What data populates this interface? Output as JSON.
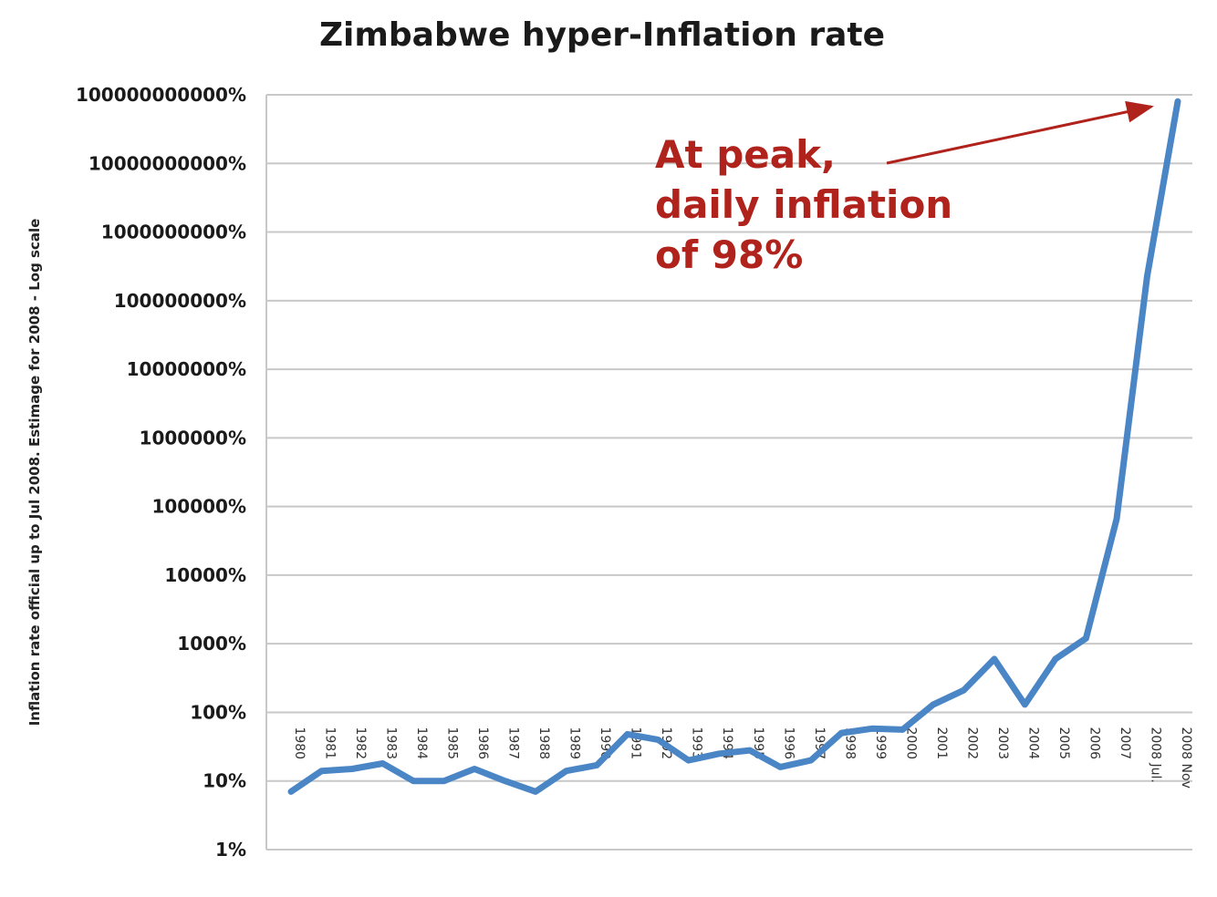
{
  "chart_data": {
    "type": "line",
    "title": "Zimbabwe hyper-Inflation rate",
    "xlabel": "",
    "ylabel": "Inflation rate official up to Jul 2008. Estimage for 2008 - Log scale",
    "yscale": "log",
    "ylim": [
      "1%",
      "100000000000%"
    ],
    "grid": true,
    "legend": "none",
    "y_tick_labels": [
      "1%",
      "10%",
      "100%",
      "1000%",
      "10000%",
      "100000%",
      "1000000%",
      "10000000%",
      "100000000%",
      "1000000000%",
      "10000000000%",
      "100000000000%"
    ],
    "categories": [
      "1980",
      "1981",
      "1982",
      "1983",
      "1984",
      "1985",
      "1986",
      "1987",
      "1988",
      "1989",
      "1990",
      "1991",
      "1992",
      "1993",
      "1994",
      "1995",
      "1996",
      "1997",
      "1998",
      "1999",
      "2000",
      "2001",
      "2002",
      "2003",
      "2004",
      "2005",
      "2006",
      "2007",
      "2008 Jul.",
      "2008 Nov"
    ],
    "series": [
      {
        "color": "#4a86c5",
        "values": [
          7,
          14,
          15,
          18,
          10,
          10,
          15,
          10,
          7,
          14,
          17,
          48,
          40,
          20,
          25,
          28,
          16,
          20,
          50,
          58,
          56,
          130,
          210,
          600,
          130,
          600,
          1200,
          66000,
          230000000,
          80000000000
        ]
      }
    ],
    "annotation": {
      "lines": [
        "At peak,",
        "daily inflation",
        "of 98%"
      ],
      "color": "#b0231c"
    }
  }
}
